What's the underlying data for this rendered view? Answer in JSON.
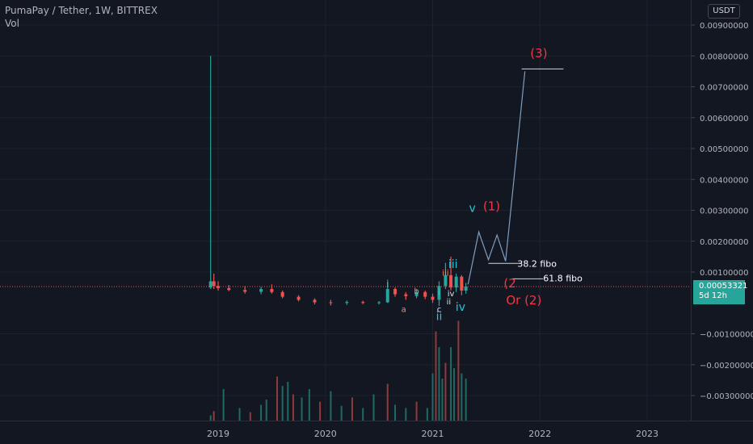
{
  "header": {
    "title": "PumaPay / Tether, 1W, BITTREX",
    "vol_label": "Vol"
  },
  "axis": {
    "unit_button": "USDT",
    "current_price": "0.00053321",
    "countdown": "5d 12h"
  },
  "colors": {
    "background": "#131722",
    "up": "#26a69a",
    "down": "#ef5350",
    "wave_label_red": "#f23645",
    "wave_label_teal": "#26c6da",
    "projection_line": "#7e9ebf"
  },
  "chart_data": {
    "type": "candlestick",
    "title": "PumaPay / Tether, 1W, BITTREX",
    "ylim": [
      -0.0039,
      0.0094
    ],
    "xlim": [
      2018.6,
      2023.45
    ],
    "y_ticks": [
      {
        "value": 0.009,
        "label": "0.00900000"
      },
      {
        "value": 0.008,
        "label": "0.00800000"
      },
      {
        "value": 0.007,
        "label": "0.00700000"
      },
      {
        "value": 0.006,
        "label": "0.00600000"
      },
      {
        "value": 0.005,
        "label": "0.00500000"
      },
      {
        "value": 0.004,
        "label": "0.00400000"
      },
      {
        "value": 0.003,
        "label": "0.00300000"
      },
      {
        "value": 0.002,
        "label": "0.00200000"
      },
      {
        "value": 0.001,
        "label": "0.00100000"
      },
      {
        "value": -0.001,
        "label": "−0.00100000"
      },
      {
        "value": -0.002,
        "label": "−0.00200000"
      },
      {
        "value": -0.003,
        "label": "−0.00300000"
      }
    ],
    "x_ticks": [
      {
        "value": 2019.0,
        "label": "2019"
      },
      {
        "value": 2020.0,
        "label": "2020"
      },
      {
        "value": 2021.0,
        "label": "2021"
      },
      {
        "value": 2022.0,
        "label": "2022"
      },
      {
        "value": 2023.0,
        "label": "2023"
      }
    ],
    "price_series": [
      {
        "x": 2018.93,
        "open": 0.0005,
        "high": 0.008,
        "low": 0.00045,
        "close": 0.0007
      },
      {
        "x": 2018.96,
        "open": 0.0007,
        "high": 0.00095,
        "low": 0.00045,
        "close": 0.00055
      },
      {
        "x": 2019.0,
        "open": 0.00055,
        "high": 0.0007,
        "low": 0.0004,
        "close": 0.00048
      },
      {
        "x": 2019.1,
        "open": 0.00048,
        "high": 0.00058,
        "low": 0.00038,
        "close": 0.00042
      },
      {
        "x": 2019.25,
        "open": 0.00042,
        "high": 0.00055,
        "low": 0.0003,
        "close": 0.00036
      },
      {
        "x": 2019.4,
        "open": 0.00036,
        "high": 0.00052,
        "low": 0.00028,
        "close": 0.00045
      },
      {
        "x": 2019.5,
        "open": 0.00045,
        "high": 0.0006,
        "low": 0.0003,
        "close": 0.00035
      },
      {
        "x": 2019.6,
        "open": 0.00035,
        "high": 0.0004,
        "low": 0.00015,
        "close": 0.0002
      },
      {
        "x": 2019.75,
        "open": 0.0002,
        "high": 0.00025,
        "low": 5e-05,
        "close": 0.0001
      },
      {
        "x": 2019.9,
        "open": 0.0001,
        "high": 0.00015,
        "low": -5e-05,
        "close": 2e-05
      },
      {
        "x": 2020.05,
        "open": 2e-05,
        "high": 0.0001,
        "low": -8e-05,
        "close": 0.0
      },
      {
        "x": 2020.2,
        "open": 0.0,
        "high": 8e-05,
        "low": -6e-05,
        "close": 3e-05
      },
      {
        "x": 2020.35,
        "open": 3e-05,
        "high": 7e-05,
        "low": -4e-05,
        "close": 0.0
      },
      {
        "x": 2020.5,
        "open": 0.0,
        "high": 6e-05,
        "low": -5e-05,
        "close": 2e-05
      },
      {
        "x": 2020.58,
        "open": 2e-05,
        "high": 0.0007,
        "low": 0.0,
        "close": 0.00045
      },
      {
        "x": 2020.65,
        "open": 0.00045,
        "high": 0.0005,
        "low": 0.0002,
        "close": 0.00028
      },
      {
        "x": 2020.75,
        "open": 0.00028,
        "high": 0.00035,
        "low": 0.0001,
        "close": 0.00022
      },
      {
        "x": 2020.85,
        "open": 0.00022,
        "high": 0.00045,
        "low": 0.00015,
        "close": 0.00035
      },
      {
        "x": 2020.93,
        "open": 0.00035,
        "high": 0.0004,
        "low": 0.00012,
        "close": 0.0002
      },
      {
        "x": 2021.0,
        "open": 0.0002,
        "high": 0.0003,
        "low": 0.0,
        "close": 0.0001
      },
      {
        "x": 2021.06,
        "open": 0.0001,
        "high": 0.0007,
        "low": -0.0001,
        "close": 0.00055
      },
      {
        "x": 2021.12,
        "open": 0.00055,
        "high": 0.0013,
        "low": 0.00045,
        "close": 0.0009
      },
      {
        "x": 2021.17,
        "open": 0.0009,
        "high": 0.0015,
        "low": 0.0004,
        "close": 0.0005
      },
      {
        "x": 2021.22,
        "open": 0.0005,
        "high": 0.00095,
        "low": 0.00035,
        "close": 0.00085
      },
      {
        "x": 2021.27,
        "open": 0.00085,
        "high": 0.0009,
        "low": 0.00025,
        "close": 0.0004
      },
      {
        "x": 2021.31,
        "open": 0.0004,
        "high": 0.00065,
        "low": 0.0003,
        "close": 0.00053
      }
    ],
    "volume_series": [
      {
        "x": 2018.93,
        "value": 0.05
      },
      {
        "x": 2018.96,
        "value": 0.09
      },
      {
        "x": 2019.05,
        "value": 0.3
      },
      {
        "x": 2019.2,
        "value": 0.12
      },
      {
        "x": 2019.3,
        "value": 0.08
      },
      {
        "x": 2019.4,
        "value": 0.15
      },
      {
        "x": 2019.45,
        "value": 0.2
      },
      {
        "x": 2019.55,
        "value": 0.42
      },
      {
        "x": 2019.6,
        "value": 0.33
      },
      {
        "x": 2019.65,
        "value": 0.37
      },
      {
        "x": 2019.7,
        "value": 0.25
      },
      {
        "x": 2019.78,
        "value": 0.22
      },
      {
        "x": 2019.85,
        "value": 0.3
      },
      {
        "x": 2019.95,
        "value": 0.18
      },
      {
        "x": 2020.05,
        "value": 0.28
      },
      {
        "x": 2020.15,
        "value": 0.14
      },
      {
        "x": 2020.25,
        "value": 0.22
      },
      {
        "x": 2020.35,
        "value": 0.12
      },
      {
        "x": 2020.45,
        "value": 0.25
      },
      {
        "x": 2020.58,
        "value": 0.35
      },
      {
        "x": 2020.65,
        "value": 0.15
      },
      {
        "x": 2020.75,
        "value": 0.12
      },
      {
        "x": 2020.85,
        "value": 0.18
      },
      {
        "x": 2020.95,
        "value": 0.12
      },
      {
        "x": 2021.0,
        "value": 0.45
      },
      {
        "x": 2021.03,
        "value": 0.85
      },
      {
        "x": 2021.06,
        "value": 0.7
      },
      {
        "x": 2021.09,
        "value": 0.4
      },
      {
        "x": 2021.12,
        "value": 0.55
      },
      {
        "x": 2021.17,
        "value": 0.7
      },
      {
        "x": 2021.2,
        "value": 0.5
      },
      {
        "x": 2021.24,
        "value": 0.95
      },
      {
        "x": 2021.27,
        "value": 0.45
      },
      {
        "x": 2021.31,
        "value": 0.4
      }
    ],
    "annotations": {
      "wave_labels": [
        {
          "text": "(3)",
          "x": 2021.99,
          "y": 0.00795,
          "color": "red",
          "size": 15
        },
        {
          "text": "(1)",
          "x": 2021.55,
          "y": 0.003,
          "color": "red",
          "size": 15
        },
        {
          "text": "v",
          "x": 2021.37,
          "y": 0.00295,
          "color": "teal",
          "size": 14
        },
        {
          "text": "iii",
          "x": 2021.19,
          "y": 0.00113,
          "color": "teal",
          "size": 14
        },
        {
          "text": "iii",
          "x": 2021.12,
          "y": 0.00088,
          "color": "salmon",
          "size": 10
        },
        {
          "text": "(2",
          "x": 2021.72,
          "y": 0.0005,
          "color": "red",
          "size": 15
        },
        {
          "text": "Or (2)",
          "x": 2021.85,
          "y": -5e-05,
          "color": "red",
          "size": 15
        },
        {
          "text": "i",
          "x": 2020.58,
          "y": 0.0005,
          "color": "teal",
          "size": 12
        },
        {
          "text": "i",
          "x": 2021.06,
          "y": 0.00025,
          "color": "teal",
          "size": 11
        },
        {
          "text": "b",
          "x": 2020.85,
          "y": 0.0003,
          "color": "salmon",
          "size": 10
        },
        {
          "text": "a",
          "x": 2020.73,
          "y": -0.0003,
          "color": "salmon",
          "size": 10
        },
        {
          "text": "c",
          "x": 2021.06,
          "y": -0.0003,
          "color": "white",
          "size": 10
        },
        {
          "text": "ii",
          "x": 2021.06,
          "y": -0.00055,
          "color": "teal",
          "size": 14
        },
        {
          "text": "ii",
          "x": 2021.15,
          "y": -5e-05,
          "color": "white",
          "size": 10
        },
        {
          "text": "iv",
          "x": 2021.17,
          "y": 0.00022,
          "color": "white",
          "size": 10
        },
        {
          "text": "iv",
          "x": 2021.26,
          "y": -0.00025,
          "color": "teal",
          "size": 14
        }
      ],
      "fibo_labels": [
        {
          "text": "38.2 fibo",
          "x": 2021.79,
          "y": 0.00128
        },
        {
          "text": "61.8 fibo",
          "x": 2022.03,
          "y": 0.0008
        }
      ],
      "fibo_lines": [
        {
          "y": 0.00128,
          "x0": 2021.52,
          "x1": 2021.83
        },
        {
          "y": 0.00078,
          "x0": 2021.74,
          "x1": 2022.03
        }
      ],
      "target_line": {
        "y": 0.00758,
        "x0": 2021.83,
        "x1": 2022.22
      },
      "projection_path": [
        {
          "x": 2021.33,
          "y": 0.0006
        },
        {
          "x": 2021.43,
          "y": 0.0023
        },
        {
          "x": 2021.52,
          "y": 0.0014
        },
        {
          "x": 2021.6,
          "y": 0.0022
        },
        {
          "x": 2021.68,
          "y": 0.00135
        },
        {
          "x": 2021.86,
          "y": 0.0075
        }
      ],
      "current_price_line": 0.00053
    }
  }
}
